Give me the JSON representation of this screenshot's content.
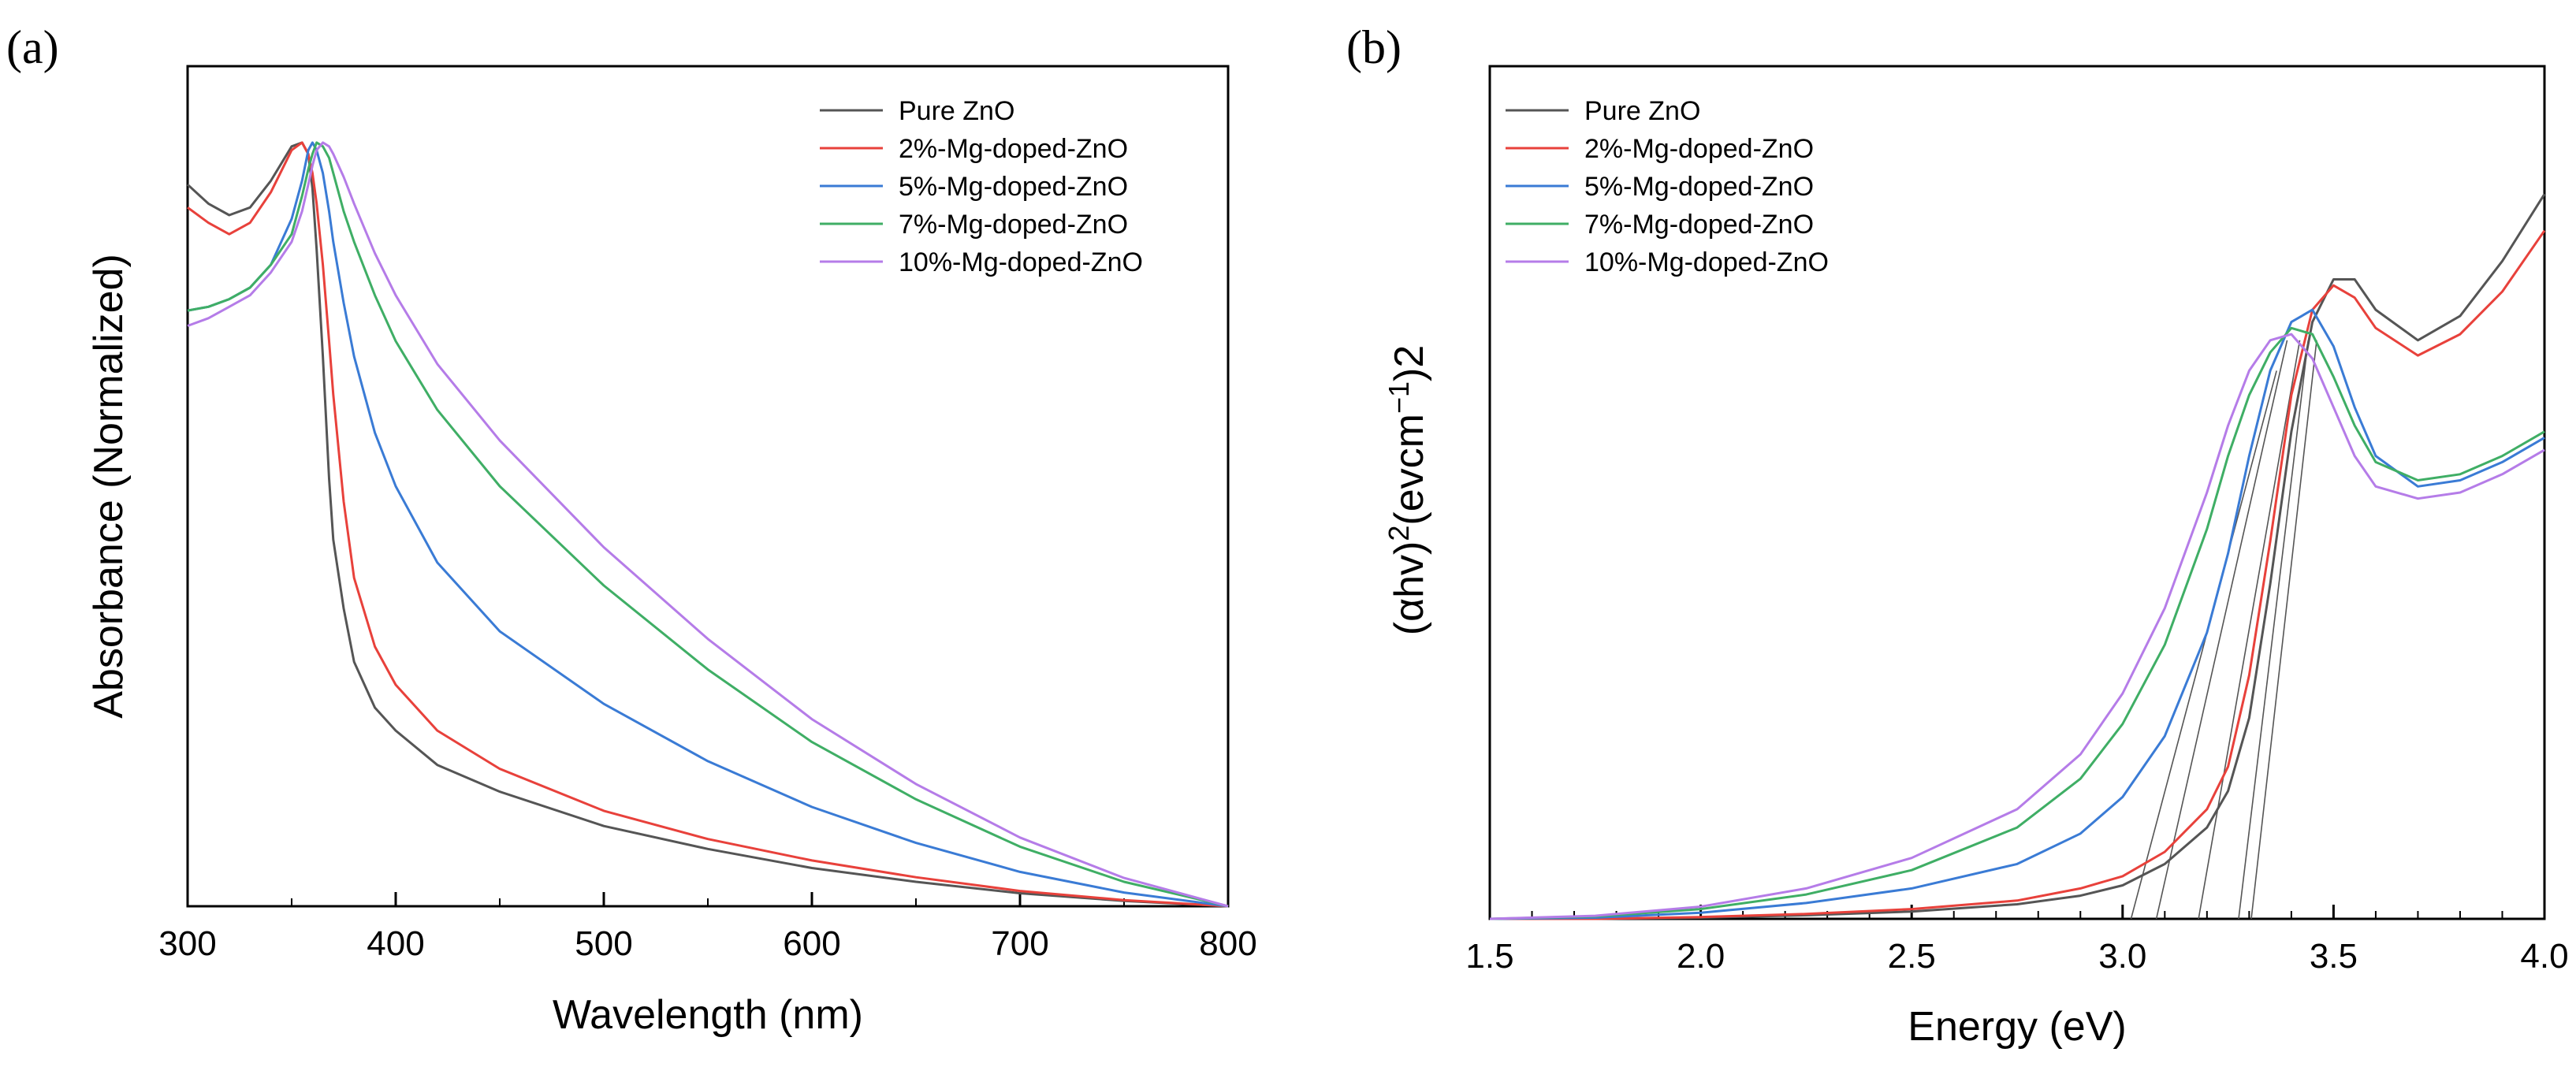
{
  "chart_data": [
    {
      "panel_label": "(a)",
      "type": "line",
      "title": "",
      "xlabel": "Wavelength (nm)",
      "ylabel": "Absorbance (Normalized)",
      "xlim": [
        300,
        800
      ],
      "ylim": [
        0,
        1.1
      ],
      "xticks": [
        300,
        400,
        500,
        600,
        700,
        800
      ],
      "xtick_labels": [
        "300",
        "400",
        "500",
        "600",
        "700",
        "800"
      ],
      "y_ticks_labeled": false,
      "grid": false,
      "legend_position": "top-right",
      "x": [
        300,
        310,
        320,
        330,
        340,
        350,
        355,
        358,
        360,
        362,
        365,
        368,
        370,
        375,
        380,
        390,
        400,
        420,
        450,
        500,
        550,
        600,
        650,
        700,
        750,
        800
      ],
      "series": [
        {
          "name": "Pure ZnO",
          "color": "#555555",
          "values": [
            0.945,
            0.92,
            0.905,
            0.915,
            0.95,
            0.995,
            1.0,
            0.985,
            0.94,
            0.86,
            0.72,
            0.56,
            0.48,
            0.39,
            0.32,
            0.26,
            0.23,
            0.185,
            0.15,
            0.105,
            0.075,
            0.05,
            0.032,
            0.017,
            0.007,
            0.0
          ]
        },
        {
          "name": "2%-Mg-doped-ZnO",
          "color": "#e8413b",
          "values": [
            0.915,
            0.895,
            0.88,
            0.895,
            0.935,
            0.99,
            1.0,
            0.985,
            0.96,
            0.92,
            0.84,
            0.74,
            0.67,
            0.53,
            0.43,
            0.34,
            0.29,
            0.23,
            0.18,
            0.125,
            0.088,
            0.06,
            0.038,
            0.02,
            0.008,
            0.0
          ]
        },
        {
          "name": "5%-Mg-doped-ZnO",
          "color": "#3a7bd5",
          "values": [
            0.78,
            0.785,
            0.795,
            0.81,
            0.84,
            0.9,
            0.95,
            0.99,
            1.0,
            0.99,
            0.96,
            0.91,
            0.87,
            0.79,
            0.72,
            0.62,
            0.55,
            0.45,
            0.36,
            0.265,
            0.19,
            0.13,
            0.083,
            0.045,
            0.018,
            0.0
          ]
        },
        {
          "name": "7%-Mg-doped-ZnO",
          "color": "#3fae65",
          "values": [
            0.78,
            0.785,
            0.795,
            0.81,
            0.84,
            0.88,
            0.93,
            0.965,
            0.985,
            1.0,
            0.995,
            0.98,
            0.96,
            0.91,
            0.87,
            0.8,
            0.74,
            0.65,
            0.55,
            0.42,
            0.31,
            0.215,
            0.14,
            0.078,
            0.032,
            0.0
          ]
        },
        {
          "name": "10%-Mg-doped-ZnO",
          "color": "#b57ce8",
          "values": [
            0.76,
            0.77,
            0.785,
            0.8,
            0.83,
            0.87,
            0.91,
            0.945,
            0.97,
            0.99,
            1.0,
            0.995,
            0.985,
            0.955,
            0.92,
            0.855,
            0.8,
            0.71,
            0.61,
            0.47,
            0.35,
            0.245,
            0.16,
            0.09,
            0.037,
            0.0
          ]
        }
      ]
    },
    {
      "panel_label": "(b)",
      "type": "line",
      "title": "",
      "xlabel": "Energy (eV)",
      "ylabel": "(αhv)²(evcm⁻¹)²",
      "ylabel_parts": [
        "(αhv)",
        "2",
        "(evcm",
        "−1",
        ")2"
      ],
      "xlim": [
        1.5,
        4.0
      ],
      "ylim": [
        0,
        1.4
      ],
      "xticks": [
        1.5,
        2.0,
        2.5,
        3.0,
        3.5,
        4.0
      ],
      "xtick_labels": [
        "1.5",
        "2.0",
        "2.5",
        "3.0",
        "3.5",
        "4.0"
      ],
      "y_ticks_labeled": false,
      "grid": false,
      "legend_position": "top-left",
      "x": [
        1.5,
        1.75,
        2.0,
        2.25,
        2.5,
        2.75,
        2.9,
        3.0,
        3.1,
        3.2,
        3.25,
        3.3,
        3.35,
        3.4,
        3.45,
        3.5,
        3.55,
        3.6,
        3.7,
        3.8,
        3.9,
        4.0
      ],
      "series": [
        {
          "name": "Pure ZnO",
          "color": "#555555",
          "values": [
            0.0,
            0.0,
            0.002,
            0.006,
            0.012,
            0.024,
            0.038,
            0.055,
            0.09,
            0.15,
            0.21,
            0.33,
            0.55,
            0.8,
            0.98,
            1.05,
            1.05,
            1.0,
            0.95,
            0.99,
            1.08,
            1.19
          ]
        },
        {
          "name": "2%-Mg-doped-ZnO",
          "color": "#e8413b",
          "values": [
            0.0,
            0.0,
            0.003,
            0.008,
            0.016,
            0.03,
            0.05,
            0.07,
            0.11,
            0.18,
            0.25,
            0.4,
            0.62,
            0.86,
            1.0,
            1.04,
            1.02,
            0.97,
            0.925,
            0.96,
            1.03,
            1.13
          ]
        },
        {
          "name": "5%-Mg-doped-ZnO",
          "color": "#3a7bd5",
          "values": [
            0.0,
            0.002,
            0.01,
            0.026,
            0.05,
            0.09,
            0.14,
            0.2,
            0.3,
            0.47,
            0.6,
            0.76,
            0.9,
            0.98,
            1.0,
            0.94,
            0.84,
            0.76,
            0.71,
            0.72,
            0.75,
            0.79
          ]
        },
        {
          "name": "7%-Mg-doped-ZnO",
          "color": "#3fae65",
          "values": [
            0.0,
            0.004,
            0.016,
            0.04,
            0.08,
            0.15,
            0.23,
            0.32,
            0.45,
            0.64,
            0.76,
            0.86,
            0.93,
            0.97,
            0.96,
            0.89,
            0.81,
            0.75,
            0.72,
            0.73,
            0.76,
            0.8
          ]
        },
        {
          "name": "10%-Mg-doped-ZnO",
          "color": "#b57ce8",
          "values": [
            0.0,
            0.005,
            0.02,
            0.05,
            0.1,
            0.18,
            0.27,
            0.37,
            0.51,
            0.7,
            0.81,
            0.9,
            0.95,
            0.96,
            0.92,
            0.84,
            0.76,
            0.71,
            0.69,
            0.7,
            0.73,
            0.77
          ]
        }
      ],
      "tangent_lines": [
        {
          "x": [
            3.02,
            3.365
          ],
          "y": [
            0.0,
            0.9
          ]
        },
        {
          "x": [
            3.08,
            3.39
          ],
          "y": [
            0.0,
            0.95
          ]
        },
        {
          "x": [
            3.18,
            3.42
          ],
          "y": [
            0.0,
            0.95
          ]
        },
        {
          "x": [
            3.275,
            3.44
          ],
          "y": [
            0.0,
            0.95
          ]
        },
        {
          "x": [
            3.305,
            3.46
          ],
          "y": [
            0.0,
            0.95
          ]
        }
      ]
    }
  ]
}
